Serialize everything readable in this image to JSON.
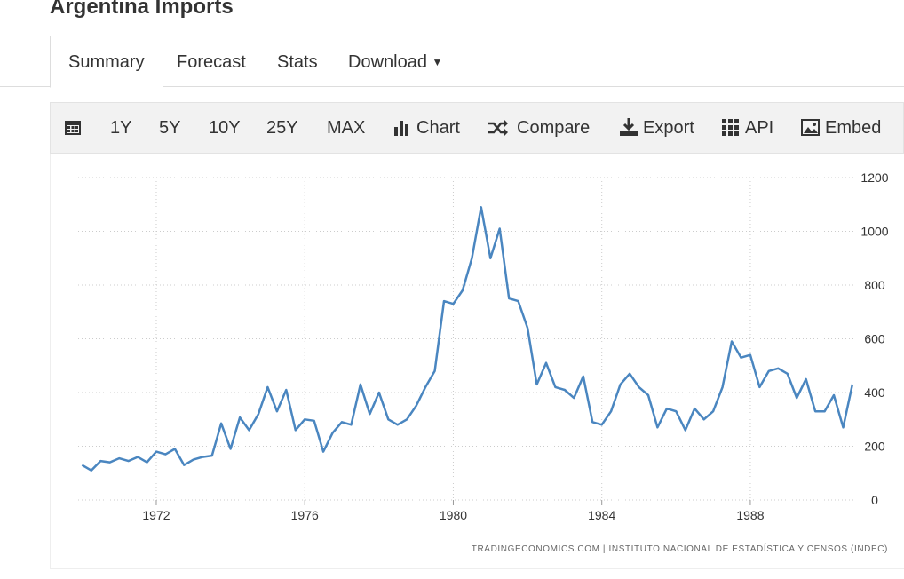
{
  "header": {
    "title": "Argentina Imports"
  },
  "tabs": [
    "Summary",
    "Forecast",
    "Stats",
    "Download"
  ],
  "toolbar": [
    "1Y",
    "5Y",
    "10Y",
    "25Y",
    "MAX",
    "Chart",
    "Compare",
    "Export",
    "API",
    "Embed"
  ],
  "chart_data": {
    "type": "line",
    "source": "TRADINGECONOMICS.COM | INSTITUTO NACIONAL DE ESTADÍSTICA Y CENSOS (INDEC)",
    "xlim": [
      1969.8,
      1990.8
    ],
    "xticks": [
      1972,
      1976,
      1980,
      1984,
      1988
    ],
    "ylim": [
      0,
      1200
    ],
    "yticks": [
      0,
      200,
      400,
      600,
      800,
      1000,
      1200
    ],
    "grid": true,
    "series": [
      {
        "color": "#4a86c0",
        "x": [
          1970,
          1970.25,
          1970.5,
          1970.75,
          1971,
          1971.25,
          1971.5,
          1971.75,
          1972,
          1972.25,
          1972.5,
          1972.75,
          1973,
          1973.25,
          1973.5,
          1973.75,
          1974,
          1974.25,
          1974.5,
          1974.75,
          1975,
          1975.25,
          1975.5,
          1975.75,
          1976,
          1976.25,
          1976.5,
          1976.75,
          1977,
          1977.25,
          1977.5,
          1977.75,
          1978,
          1978.25,
          1978.5,
          1978.75,
          1979,
          1979.25,
          1979.5,
          1979.75,
          1980,
          1980.25,
          1980.5,
          1980.75,
          1981,
          1981.25,
          1981.5,
          1981.75,
          1982,
          1982.25,
          1982.5,
          1982.75,
          1983,
          1983.25,
          1983.5,
          1983.75,
          1984,
          1984.25,
          1984.5,
          1984.75,
          1985,
          1985.25,
          1985.5,
          1985.75,
          1986,
          1986.25,
          1986.5,
          1986.75,
          1987,
          1987.25,
          1987.5,
          1987.75,
          1988,
          1988.25,
          1988.5,
          1988.75,
          1989,
          1989.25,
          1989.5,
          1989.75,
          1990,
          1990.25,
          1990.5,
          1990.75
        ],
        "values": [
          130,
          110,
          145,
          140,
          155,
          145,
          160,
          140,
          180,
          170,
          190,
          130,
          150,
          160,
          165,
          285,
          190,
          307,
          260,
          320,
          420,
          330,
          410,
          260,
          300,
          295,
          180,
          250,
          290,
          280,
          430,
          320,
          400,
          300,
          280,
          300,
          350,
          420,
          480,
          740,
          730,
          780,
          900,
          1090,
          900,
          1010,
          750,
          740,
          640,
          430,
          510,
          420,
          410,
          380,
          460,
          290,
          280,
          330,
          430,
          470,
          420,
          390,
          270,
          340,
          330,
          260,
          340,
          300,
          330,
          420,
          590,
          530,
          540,
          420,
          480,
          490,
          470,
          380,
          450,
          330,
          330,
          390,
          270,
          430
        ]
      }
    ]
  }
}
